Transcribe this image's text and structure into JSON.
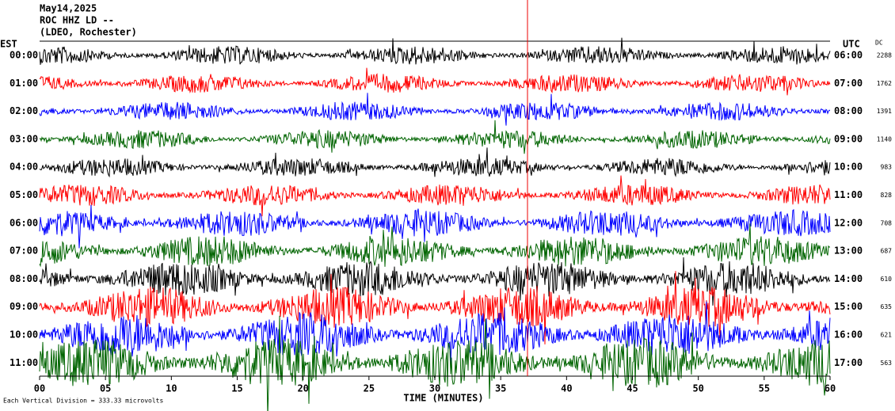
{
  "chart_data": {
    "type": "helicorder",
    "title": "May14,2025",
    "subtitle": "ROC HHZ LD --",
    "station": "(LDEO, Rochester)",
    "left_axis_title": "EST",
    "right_axis_title": "UTC",
    "dc_title": "DC",
    "x_label": "TIME (MINUTES)",
    "scale_note": "Each Vertical Division = 333.33 microvolts",
    "xlim": [
      0,
      60
    ],
    "xticks": [
      {
        "value": 0,
        "label": "00"
      },
      {
        "value": 5,
        "label": "05"
      },
      10,
      15,
      20,
      25,
      30,
      35,
      40,
      45,
      50,
      55,
      60
    ],
    "rows_est": [
      "00:00",
      "01:00",
      "02:00",
      "03:00",
      "04:00",
      "05:00",
      "06:00",
      "07:00",
      "08:00",
      "09:00",
      "10:00",
      "11:00"
    ],
    "rows_utc": [
      "06:00",
      "07:00",
      "08:00",
      "09:00",
      "10:00",
      "11:00",
      "12:00",
      "13:00",
      "14:00",
      "15:00",
      "16:00",
      "17:00"
    ],
    "dc": [
      2288,
      1762,
      1391,
      1140,
      983,
      828,
      708,
      687,
      610,
      635,
      621,
      563
    ],
    "colors": [
      "#000000",
      "#ff0000",
      "#0000ff",
      "#006400"
    ]
  }
}
